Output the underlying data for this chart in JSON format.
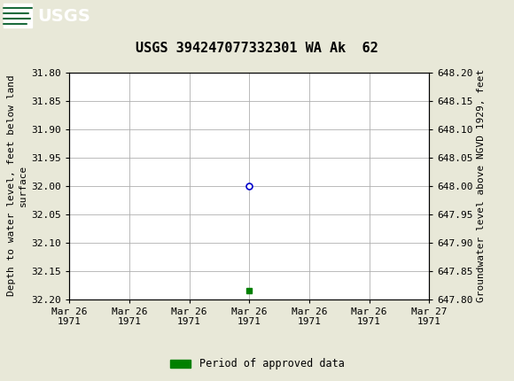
{
  "title": "USGS 394247077332301 WA Ak  62",
  "ylabel_left": "Depth to water level, feet below land\nsurface",
  "ylabel_right": "Groundwater level above NGVD 1929, feet",
  "ylim_left": [
    31.8,
    32.2
  ],
  "ylim_right": [
    647.8,
    648.2
  ],
  "yticks_left": [
    31.8,
    31.85,
    31.9,
    31.95,
    32.0,
    32.05,
    32.1,
    32.15,
    32.2
  ],
  "yticks_right": [
    647.8,
    647.85,
    647.9,
    647.95,
    648.0,
    648.05,
    648.1,
    648.15,
    648.2
  ],
  "xlim": [
    0,
    6
  ],
  "xtick_labels": [
    "Mar 26\n1971",
    "Mar 26\n1971",
    "Mar 26\n1971",
    "Mar 26\n1971",
    "Mar 26\n1971",
    "Mar 26\n1971",
    "Mar 27\n1971"
  ],
  "xtick_positions": [
    0,
    1,
    2,
    3,
    4,
    5,
    6
  ],
  "data_point_x": 3.0,
  "data_point_y": 32.0,
  "data_point_color": "#0000CC",
  "bar_x": 3.0,
  "bar_y": 32.185,
  "bar_color": "#008000",
  "background_color": "#e8e8d8",
  "plot_bg_color": "#ffffff",
  "grid_color": "#b0b0b0",
  "header_color": "#1a6b3c",
  "title_fontsize": 11,
  "axis_label_fontsize": 8,
  "tick_fontsize": 8,
  "legend_label": "Period of approved data",
  "legend_color": "#008000"
}
